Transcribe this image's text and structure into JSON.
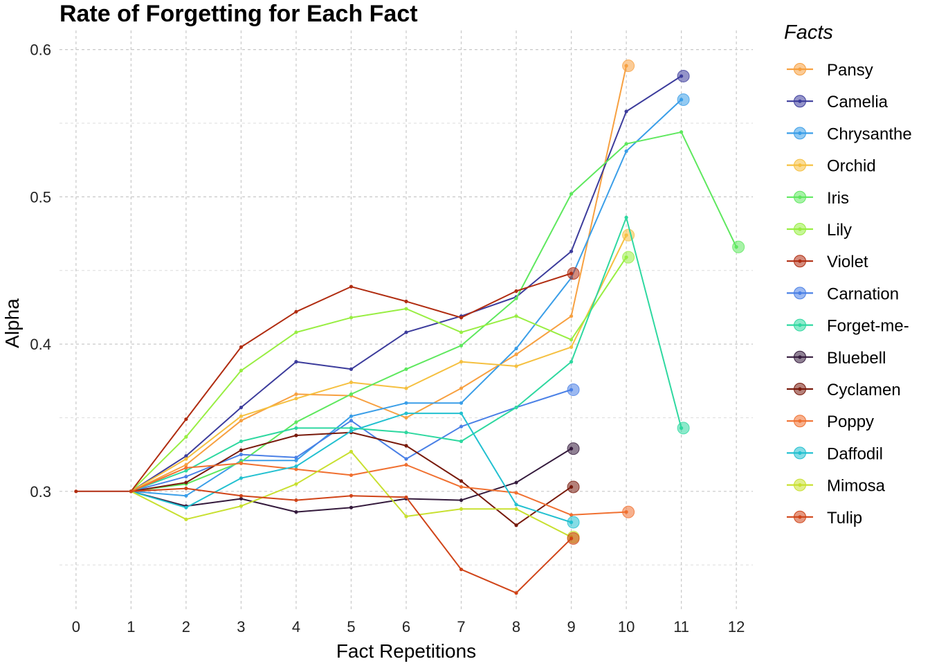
{
  "chart_data": {
    "type": "line",
    "title": "Rate of Forgetting for Each Fact",
    "xlabel": "Fact Repetitions",
    "ylabel": "Alpha",
    "xlim": [
      -0.3,
      12.3
    ],
    "ylim": [
      0.22,
      0.613
    ],
    "xticks": [
      0,
      1,
      2,
      3,
      4,
      5,
      6,
      7,
      8,
      9,
      10,
      11,
      12
    ],
    "yticks": [
      0.3,
      0.4,
      0.5,
      0.6
    ],
    "y_minor_ticks": [
      0.25,
      0.35,
      0.45,
      0.55
    ],
    "grid": true,
    "legend": {
      "title": "Facts",
      "position": "right"
    },
    "series": [
      {
        "name": "Pansy",
        "color": "#f7a040",
        "x": [
          1,
          2,
          3,
          4,
          5,
          6,
          7,
          8,
          9,
          10
        ],
        "y": [
          0.3,
          0.318,
          0.348,
          0.366,
          0.365,
          0.35,
          0.37,
          0.393,
          0.419,
          0.589
        ]
      },
      {
        "name": "Camelia",
        "color": "#3c3c9c",
        "x": [
          1,
          2,
          3,
          4,
          5,
          6,
          7,
          8,
          9,
          10,
          11
        ],
        "y": [
          0.3,
          0.324,
          0.357,
          0.388,
          0.383,
          0.408,
          0.419,
          0.432,
          0.463,
          0.558,
          0.582
        ]
      },
      {
        "name": "Chrysanthe",
        "color": "#3a9ee8",
        "x": [
          1,
          2,
          3,
          4,
          5,
          6,
          7,
          8,
          9,
          10,
          11
        ],
        "y": [
          0.3,
          0.297,
          0.321,
          0.321,
          0.351,
          0.36,
          0.36,
          0.397,
          0.445,
          0.531,
          0.566
        ]
      },
      {
        "name": "Orchid",
        "color": "#f5c040",
        "x": [
          1,
          2,
          3,
          4,
          5,
          6,
          7,
          8,
          9,
          10
        ],
        "y": [
          0.3,
          0.322,
          0.351,
          0.363,
          0.374,
          0.37,
          0.388,
          0.385,
          0.398,
          0.474
        ]
      },
      {
        "name": "Iris",
        "color": "#5ee85e",
        "x": [
          1,
          2,
          3,
          4,
          5,
          6,
          7,
          8,
          9,
          10,
          11,
          12
        ],
        "y": [
          0.3,
          0.305,
          0.32,
          0.347,
          0.366,
          0.383,
          0.399,
          0.431,
          0.502,
          0.536,
          0.544,
          0.466
        ]
      },
      {
        "name": "Lily",
        "color": "#98ee42",
        "x": [
          1,
          2,
          3,
          4,
          5,
          6,
          7,
          8,
          9,
          10
        ],
        "y": [
          0.3,
          0.337,
          0.382,
          0.408,
          0.418,
          0.424,
          0.408,
          0.419,
          0.403,
          0.459
        ]
      },
      {
        "name": "Violet",
        "color": "#b02c10",
        "x": [
          0,
          1,
          2,
          3,
          4,
          5,
          6,
          7,
          8,
          9
        ],
        "y": [
          0.3,
          0.3,
          0.349,
          0.398,
          0.422,
          0.439,
          0.429,
          0.418,
          0.436,
          0.448
        ]
      },
      {
        "name": "Carnation",
        "color": "#4a80e6",
        "x": [
          1,
          2,
          3,
          4,
          5,
          6,
          7,
          8,
          9
        ],
        "y": [
          0.3,
          0.31,
          0.325,
          0.323,
          0.348,
          0.322,
          0.344,
          0.357,
          0.369
        ]
      },
      {
        "name": "Forget-me-",
        "color": "#2ed8a0",
        "x": [
          1,
          2,
          3,
          4,
          5,
          6,
          7,
          8,
          9,
          10,
          11
        ],
        "y": [
          0.3,
          0.314,
          0.334,
          0.343,
          0.343,
          0.34,
          0.334,
          0.357,
          0.388,
          0.486,
          0.343
        ]
      },
      {
        "name": "Bluebell",
        "color": "#341a3c",
        "x": [
          1,
          2,
          3,
          4,
          5,
          6,
          7,
          8,
          9
        ],
        "y": [
          0.3,
          0.29,
          0.295,
          0.286,
          0.289,
          0.295,
          0.294,
          0.306,
          0.329
        ]
      },
      {
        "name": "Cyclamen",
        "color": "#781a0c",
        "x": [
          1,
          2,
          3,
          4,
          5,
          6,
          7,
          8,
          9
        ],
        "y": [
          0.3,
          0.306,
          0.328,
          0.338,
          0.34,
          0.331,
          0.307,
          0.277,
          0.303
        ]
      },
      {
        "name": "Poppy",
        "color": "#f07030",
        "x": [
          1,
          2,
          3,
          4,
          5,
          6,
          7,
          8,
          9,
          10
        ],
        "y": [
          0.3,
          0.316,
          0.319,
          0.315,
          0.311,
          0.318,
          0.303,
          0.299,
          0.284,
          0.286
        ]
      },
      {
        "name": "Daffodil",
        "color": "#22c0d0",
        "x": [
          1,
          2,
          3,
          4,
          5,
          6,
          7,
          8,
          9
        ],
        "y": [
          0.3,
          0.289,
          0.309,
          0.317,
          0.341,
          0.353,
          0.353,
          0.291,
          0.279
        ]
      },
      {
        "name": "Mimosa",
        "color": "#c8e030",
        "x": [
          1,
          2,
          3,
          4,
          5,
          6,
          7,
          8,
          9
        ],
        "y": [
          0.3,
          0.281,
          0.29,
          0.305,
          0.327,
          0.283,
          0.288,
          0.288,
          0.269
        ]
      },
      {
        "name": "Tulip",
        "color": "#d04418",
        "x": [
          1,
          2,
          3,
          4,
          5,
          6,
          7,
          8,
          9
        ],
        "y": [
          0.3,
          0.302,
          0.297,
          0.294,
          0.297,
          0.296,
          0.247,
          0.231,
          0.268
        ]
      }
    ]
  }
}
